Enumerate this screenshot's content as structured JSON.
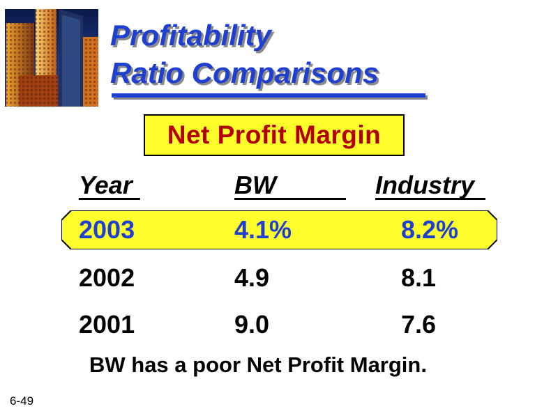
{
  "title_line1": "Profitability",
  "title_line2": "Ratio Comparisons",
  "subtitle": "Net Profit Margin",
  "headers": {
    "year": "Year",
    "bw": "BW",
    "industry": "Industry"
  },
  "rows": [
    {
      "year": "2003",
      "bw": "4.1%",
      "industry": "8.2%",
      "highlighted": true
    },
    {
      "year": "2002",
      "bw": "4.9",
      "industry": "8.1",
      "highlighted": false
    },
    {
      "year": "2001",
      "bw": "9.0",
      "industry": "7.6",
      "highlighted": false
    }
  ],
  "footer": "BW has a poor Net Profit Margin.",
  "slide_number": "6-49",
  "colors": {
    "title": "#1f3fd0",
    "subtitle_text": "#b20000",
    "highlight_fill": "#ffff2b",
    "highlight_text": "#1f3fd0"
  },
  "icons": {
    "logo": "skyscrapers-image"
  }
}
